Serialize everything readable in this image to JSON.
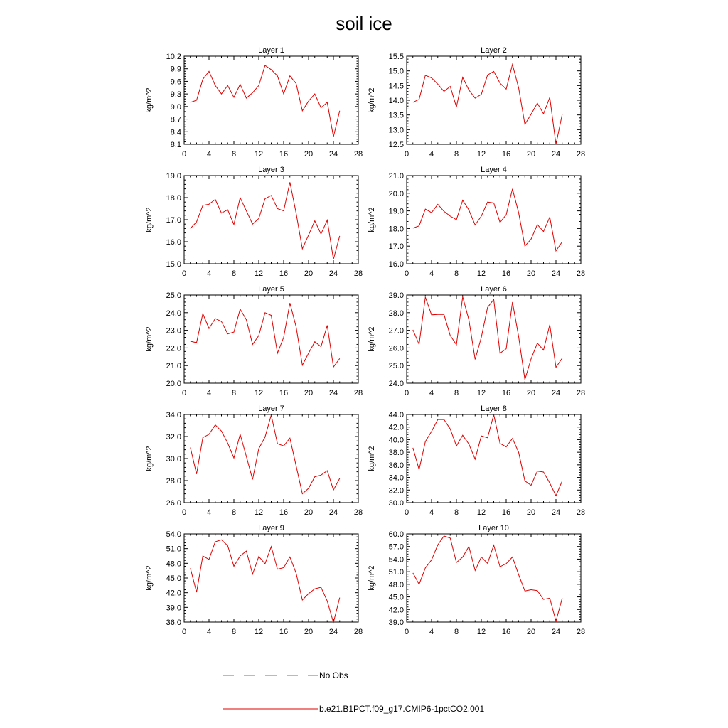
{
  "title": "soil ice",
  "legend": [
    {
      "label": "No Obs",
      "color": "#6a6ad0",
      "dash": true
    },
    {
      "label": "b.e21.B1PCT.f09_g17.CMIP6-1pctCO2.001",
      "color": "#e00000",
      "dash": false
    }
  ],
  "chart_data": [
    {
      "type": "line",
      "title": "Layer 1",
      "ylabel": "kg/m^2",
      "xlim": [
        0,
        28
      ],
      "ylim": [
        8.1,
        10.2
      ],
      "xticks": [
        "0",
        "4",
        "8",
        "12",
        "16",
        "20",
        "24",
        "28"
      ],
      "yticks": [
        "8.1",
        "8.4",
        "8.7",
        "9.0",
        "9.3",
        "9.6",
        "9.9",
        "10.2"
      ],
      "series": [
        {
          "color": "#e00000",
          "x": [
            1,
            2,
            3,
            4,
            5,
            6,
            7,
            8,
            9,
            10,
            11,
            12,
            13,
            14,
            15,
            16,
            17,
            18,
            19,
            20,
            21,
            22,
            23,
            24,
            25
          ],
          "values": [
            9.1,
            9.15,
            9.65,
            9.84,
            9.5,
            9.3,
            9.5,
            9.22,
            9.53,
            9.2,
            9.33,
            9.5,
            9.98,
            9.88,
            9.73,
            9.3,
            9.73,
            9.55,
            8.9,
            9.13,
            9.3,
            8.97,
            9.1,
            8.28,
            8.9
          ]
        }
      ]
    },
    {
      "type": "line",
      "title": "Layer 2",
      "ylabel": "kg/m^2",
      "xlim": [
        0,
        28
      ],
      "ylim": [
        12.5,
        15.5
      ],
      "xticks": [
        "0",
        "4",
        "8",
        "12",
        "16",
        "20",
        "24",
        "28"
      ],
      "yticks": [
        "12.5",
        "13.0",
        "13.5",
        "14.0",
        "14.5",
        "15.0",
        "15.5"
      ],
      "series": [
        {
          "color": "#e00000",
          "x": [
            1,
            2,
            3,
            4,
            5,
            6,
            7,
            8,
            9,
            10,
            11,
            12,
            13,
            14,
            15,
            16,
            17,
            18,
            19,
            20,
            21,
            22,
            23,
            24,
            25
          ],
          "values": [
            13.93,
            14.03,
            14.85,
            14.76,
            14.55,
            14.3,
            14.47,
            13.77,
            14.78,
            14.35,
            14.07,
            14.2,
            14.86,
            14.98,
            14.58,
            14.38,
            15.22,
            14.42,
            13.18,
            13.52,
            13.9,
            13.54,
            14.1,
            12.5,
            13.52
          ]
        }
      ]
    },
    {
      "type": "line",
      "title": "Layer 3",
      "ylabel": "kg/m^2",
      "xlim": [
        0,
        28
      ],
      "ylim": [
        15.0,
        19.0
      ],
      "xticks": [
        "0",
        "4",
        "8",
        "12",
        "16",
        "20",
        "24",
        "28"
      ],
      "yticks": [
        "15.0",
        "16.0",
        "17.0",
        "18.0",
        "19.0"
      ],
      "series": [
        {
          "color": "#e00000",
          "x": [
            1,
            2,
            3,
            4,
            5,
            6,
            7,
            8,
            9,
            10,
            11,
            12,
            13,
            14,
            15,
            16,
            17,
            18,
            19,
            20,
            21,
            22,
            23,
            24,
            25
          ],
          "values": [
            16.6,
            16.9,
            17.65,
            17.7,
            17.92,
            17.3,
            17.45,
            16.78,
            18.0,
            17.4,
            16.8,
            17.05,
            17.95,
            18.1,
            17.5,
            17.4,
            18.7,
            17.3,
            15.68,
            16.3,
            16.95,
            16.35,
            16.98,
            15.2,
            16.26
          ]
        }
      ]
    },
    {
      "type": "line",
      "title": "Layer 4",
      "ylabel": "kg/m^2",
      "xlim": [
        0,
        28
      ],
      "ylim": [
        16.0,
        21.0
      ],
      "xticks": [
        "0",
        "4",
        "8",
        "12",
        "16",
        "20",
        "24",
        "28"
      ],
      "yticks": [
        "16.0",
        "17.0",
        "18.0",
        "19.0",
        "20.0",
        "21.0"
      ],
      "series": [
        {
          "color": "#e00000",
          "x": [
            1,
            2,
            3,
            4,
            5,
            6,
            7,
            8,
            9,
            10,
            11,
            12,
            13,
            14,
            15,
            16,
            17,
            18,
            19,
            20,
            21,
            22,
            23,
            24,
            25
          ],
          "values": [
            18.02,
            18.15,
            19.1,
            18.9,
            19.37,
            18.97,
            18.7,
            18.5,
            19.6,
            19.05,
            18.2,
            18.7,
            19.5,
            19.45,
            18.35,
            18.78,
            20.25,
            18.9,
            17.0,
            17.4,
            18.22,
            17.83,
            18.65,
            16.73,
            17.25
          ]
        }
      ]
    },
    {
      "type": "line",
      "title": "Layer 5",
      "ylabel": "kg/m^2",
      "xlim": [
        0,
        28
      ],
      "ylim": [
        20.0,
        25.0
      ],
      "xticks": [
        "0",
        "4",
        "8",
        "12",
        "16",
        "20",
        "24",
        "28"
      ],
      "yticks": [
        "20.0",
        "21.0",
        "22.0",
        "23.0",
        "24.0",
        "25.0"
      ],
      "series": [
        {
          "color": "#e00000",
          "x": [
            1,
            2,
            3,
            4,
            5,
            6,
            7,
            8,
            9,
            10,
            11,
            12,
            13,
            14,
            15,
            16,
            17,
            18,
            19,
            20,
            21,
            22,
            23,
            24,
            25
          ],
          "values": [
            22.38,
            22.3,
            23.95,
            23.1,
            23.67,
            23.5,
            22.8,
            22.9,
            24.2,
            23.6,
            22.2,
            22.7,
            24.0,
            23.85,
            21.7,
            22.6,
            24.55,
            23.2,
            21.02,
            21.7,
            22.35,
            22.07,
            23.28,
            20.92,
            21.4
          ]
        }
      ]
    },
    {
      "type": "line",
      "title": "Layer 6",
      "ylabel": "kg/m^2",
      "xlim": [
        0,
        28
      ],
      "ylim": [
        24.0,
        29.0
      ],
      "xticks": [
        "0",
        "4",
        "8",
        "12",
        "16",
        "20",
        "24",
        "28"
      ],
      "yticks": [
        "24.0",
        "25.0",
        "26.0",
        "27.0",
        "28.0",
        "29.0"
      ],
      "series": [
        {
          "color": "#e00000",
          "x": [
            1,
            2,
            3,
            4,
            5,
            6,
            7,
            8,
            9,
            10,
            11,
            12,
            13,
            14,
            15,
            16,
            17,
            18,
            19,
            20,
            21,
            22,
            23,
            24,
            25
          ],
          "values": [
            27.03,
            26.2,
            28.88,
            27.88,
            27.9,
            27.9,
            26.7,
            26.18,
            28.9,
            27.6,
            25.35,
            26.6,
            28.3,
            28.75,
            25.7,
            25.95,
            28.6,
            26.65,
            24.2,
            25.38,
            26.27,
            25.88,
            27.32,
            24.9,
            25.42
          ]
        }
      ]
    },
    {
      "type": "line",
      "title": "Layer 7",
      "ylabel": "kg/m^2",
      "xlim": [
        0,
        28
      ],
      "ylim": [
        26.0,
        34.0
      ],
      "xticks": [
        "0",
        "4",
        "8",
        "12",
        "16",
        "20",
        "24",
        "28"
      ],
      "yticks": [
        "26.0",
        "28.0",
        "30.0",
        "32.0",
        "34.0"
      ],
      "series": [
        {
          "color": "#e00000",
          "x": [
            1,
            2,
            3,
            4,
            5,
            6,
            7,
            8,
            9,
            10,
            11,
            12,
            13,
            14,
            15,
            16,
            17,
            18,
            19,
            20,
            21,
            22,
            23,
            24,
            25
          ],
          "values": [
            31.0,
            28.6,
            31.9,
            32.2,
            33.05,
            32.5,
            31.4,
            30.05,
            32.2,
            30.2,
            28.1,
            30.9,
            31.95,
            33.95,
            31.35,
            31.15,
            31.85,
            29.35,
            26.8,
            27.3,
            28.35,
            28.5,
            28.9,
            27.15,
            28.2
          ]
        }
      ]
    },
    {
      "type": "line",
      "title": "Layer 8",
      "ylabel": "kg/m^2",
      "xlim": [
        0,
        28
      ],
      "ylim": [
        30.0,
        44.0
      ],
      "xticks": [
        "0",
        "4",
        "8",
        "12",
        "16",
        "20",
        "24",
        "28"
      ],
      "yticks": [
        "30.0",
        "32.0",
        "34.0",
        "36.0",
        "38.0",
        "40.0",
        "42.0",
        "44.0"
      ],
      "series": [
        {
          "color": "#e00000",
          "x": [
            1,
            2,
            3,
            4,
            5,
            6,
            7,
            8,
            9,
            10,
            11,
            12,
            13,
            14,
            15,
            16,
            17,
            18,
            19,
            20,
            21,
            22,
            23,
            24,
            25
          ],
          "values": [
            38.7,
            35.25,
            39.7,
            41.3,
            43.2,
            43.2,
            41.7,
            39.0,
            40.7,
            39.3,
            36.9,
            40.6,
            40.3,
            43.95,
            39.4,
            38.85,
            40.2,
            38.0,
            33.45,
            32.75,
            35.0,
            34.85,
            33.1,
            31.1,
            33.45
          ]
        }
      ]
    },
    {
      "type": "line",
      "title": "Layer 9",
      "ylabel": "kg/m^2",
      "xlim": [
        0,
        28
      ],
      "ylim": [
        36.0,
        54.0
      ],
      "xticks": [
        "0",
        "4",
        "8",
        "12",
        "16",
        "20",
        "24",
        "28"
      ],
      "yticks": [
        "36.0",
        "39.0",
        "42.0",
        "45.0",
        "48.0",
        "51.0",
        "54.0"
      ],
      "series": [
        {
          "color": "#e00000",
          "x": [
            1,
            2,
            3,
            4,
            5,
            6,
            7,
            8,
            9,
            10,
            11,
            12,
            13,
            14,
            15,
            16,
            17,
            18,
            19,
            20,
            21,
            22,
            23,
            24,
            25
          ],
          "values": [
            47.0,
            42.1,
            49.5,
            48.8,
            52.4,
            52.8,
            51.6,
            47.4,
            49.5,
            50.5,
            45.8,
            49.4,
            47.9,
            51.4,
            46.8,
            47.1,
            49.3,
            46.0,
            40.5,
            41.8,
            42.8,
            43.1,
            40.3,
            35.9,
            41.0
          ]
        }
      ]
    },
    {
      "type": "line",
      "title": "Layer 10",
      "ylabel": "kg/m^2",
      "xlim": [
        0,
        28
      ],
      "ylim": [
        39.0,
        60.0
      ],
      "xticks": [
        "0",
        "4",
        "8",
        "12",
        "16",
        "20",
        "24",
        "28"
      ],
      "yticks": [
        "39.0",
        "42.0",
        "45.0",
        "48.0",
        "51.0",
        "54.0",
        "57.0",
        "60.0"
      ],
      "series": [
        {
          "color": "#e00000",
          "x": [
            1,
            2,
            3,
            4,
            5,
            6,
            7,
            8,
            9,
            10,
            11,
            12,
            13,
            14,
            15,
            16,
            17,
            18,
            19,
            20,
            21,
            22,
            23,
            24,
            25
          ],
          "values": [
            50.7,
            48.0,
            51.9,
            53.8,
            57.4,
            59.5,
            59.0,
            53.2,
            54.5,
            57.0,
            51.3,
            54.5,
            53.0,
            57.3,
            52.2,
            52.9,
            54.5,
            50.3,
            46.4,
            46.7,
            46.5,
            44.4,
            44.7,
            39.2,
            44.7
          ]
        }
      ]
    }
  ]
}
